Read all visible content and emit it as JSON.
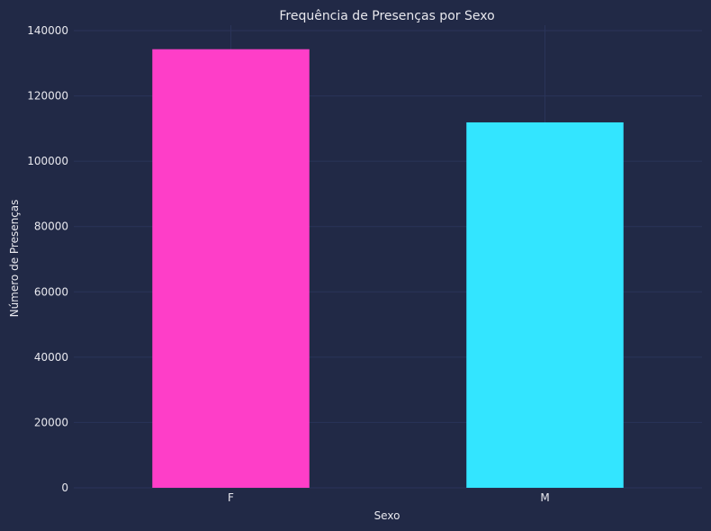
{
  "chart_data": {
    "type": "bar",
    "title": "Frequência de Presenças por Sexo",
    "xlabel": "Sexo",
    "ylabel": "Número de Presenças",
    "categories": [
      "F",
      "M"
    ],
    "values": [
      134300,
      111900
    ],
    "bar_colors": [
      "#fe3ec8",
      "#33e5ff"
    ],
    "ylim": [
      0,
      140000
    ],
    "yticks": [
      0,
      20000,
      40000,
      60000,
      80000,
      100000,
      120000,
      140000
    ],
    "grid": true
  },
  "colors": {
    "background": "#212946",
    "grid": "#2a3459",
    "text": "#e8e8ee"
  }
}
